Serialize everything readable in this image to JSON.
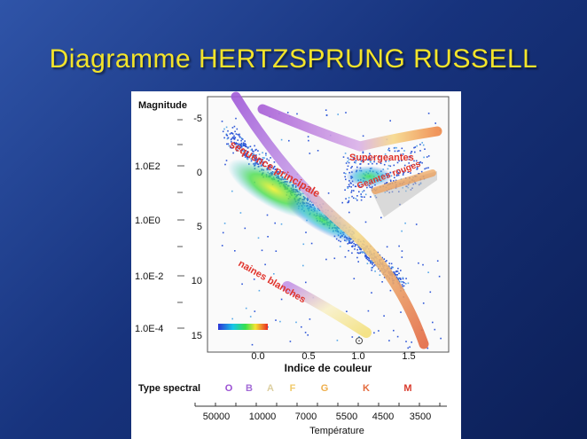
{
  "slide": {
    "title": "Diagramme HERTZSPRUNG RUSSELL"
  },
  "axes": {
    "luminosity_label": "Magnitude",
    "luminosity_ticks": [
      "1.0E2",
      "1.0E0",
      "1.0E-2",
      "1.0E-4"
    ],
    "magnitude_ticks": [
      "-5",
      "0",
      "5",
      "10",
      "15"
    ],
    "color_index_ticks": [
      "0.0",
      "0.5",
      "1.0",
      "1.5"
    ],
    "color_index_label": "Indice de couleur",
    "spectral_label": "Type spectral",
    "spectral_types": [
      {
        "letter": "O",
        "color": "#9b4fd3"
      },
      {
        "letter": "B",
        "color": "#a36bd6"
      },
      {
        "letter": "A",
        "color": "#dccfa0"
      },
      {
        "letter": "F",
        "color": "#f1c96a"
      },
      {
        "letter": "G",
        "color": "#efae4a"
      },
      {
        "letter": "K",
        "color": "#e46a3c"
      },
      {
        "letter": "M",
        "color": "#d93a2c"
      }
    ],
    "temperature_ticks": [
      "50000",
      "10000",
      "7000",
      "5500",
      "4500",
      "3500"
    ],
    "temperature_label": "Température"
  },
  "regions": {
    "main_sequence": "sequence principale",
    "supergiants": "Supergeantes",
    "giants": "Geantes rouges",
    "white_dwarfs": "naines blanches",
    "sun_marker": "⊙"
  },
  "colors": {
    "background": "#17337d",
    "title": "#f3e42a",
    "region_label": "#e0342c"
  }
}
